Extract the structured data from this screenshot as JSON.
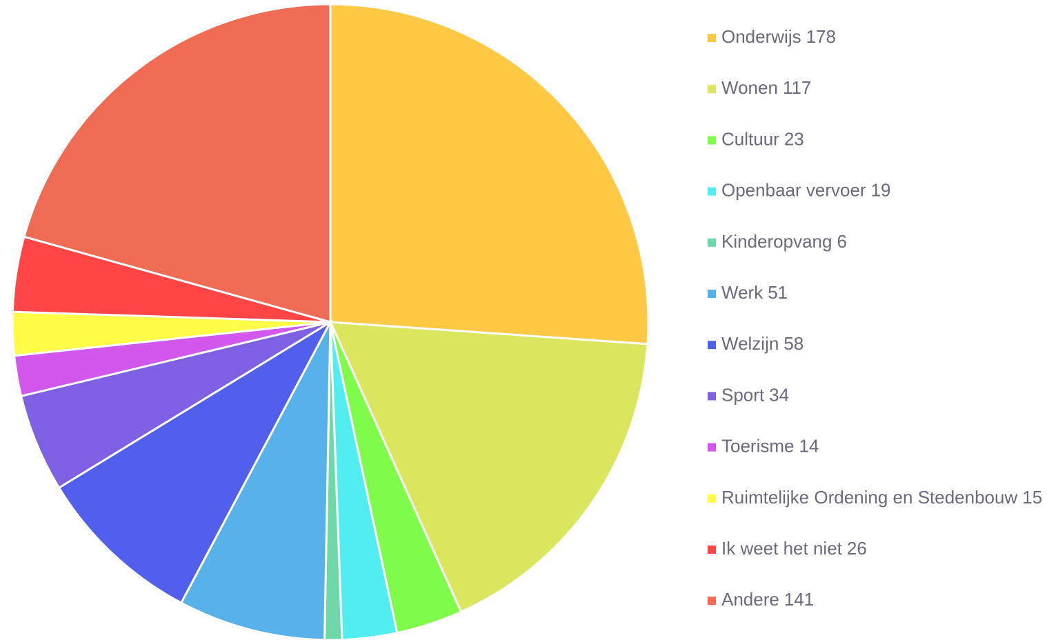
{
  "chart_data": {
    "type": "pie",
    "categories": [
      "Onderwijs",
      "Wonen",
      "Cultuur",
      "Openbaar vervoer",
      "Kinderopvang",
      "Werk",
      "Welzijn",
      "Sport",
      "Toerisme",
      "Ruimtelijke Ordening en Stedenbouw",
      "Ik weet het niet",
      "Andere"
    ],
    "values": [
      178,
      117,
      23,
      19,
      6,
      51,
      58,
      34,
      14,
      15,
      26,
      141
    ],
    "colors": [
      "#ffc845",
      "#dae65e",
      "#7ffb4a",
      "#52eeef",
      "#6fd8a9",
      "#58b2ea",
      "#525eec",
      "#7e60e2",
      "#d257ec",
      "#fffc48",
      "#ff4545",
      "#f06b54"
    ],
    "legend": "right"
  }
}
